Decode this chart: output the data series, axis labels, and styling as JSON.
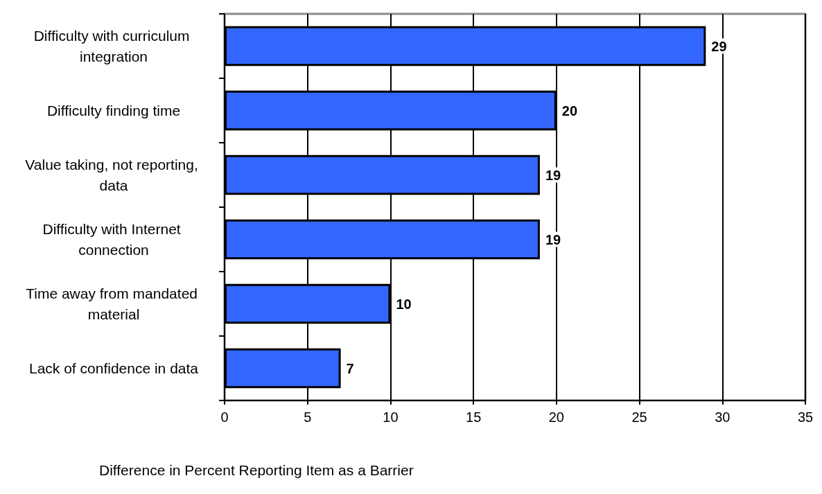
{
  "chart_data": {
    "type": "bar",
    "orientation": "horizontal",
    "xlabel": "Difference in Percent Reporting Item as a Barrier",
    "categories": [
      "Difficulty with curriculum integration",
      "Difficulty finding time",
      "Value taking, not reporting, data",
      "Difficulty with Internet connection",
      "Time away from mandated material",
      "Lack of confidence in data"
    ],
    "values": [
      29,
      20,
      19,
      19,
      10,
      7
    ],
    "color": "#3366ff",
    "data_labels": true,
    "xlim": [
      0,
      35
    ],
    "xticks": [
      0,
      5,
      10,
      15,
      20,
      25,
      30,
      35
    ],
    "grid": "x"
  }
}
